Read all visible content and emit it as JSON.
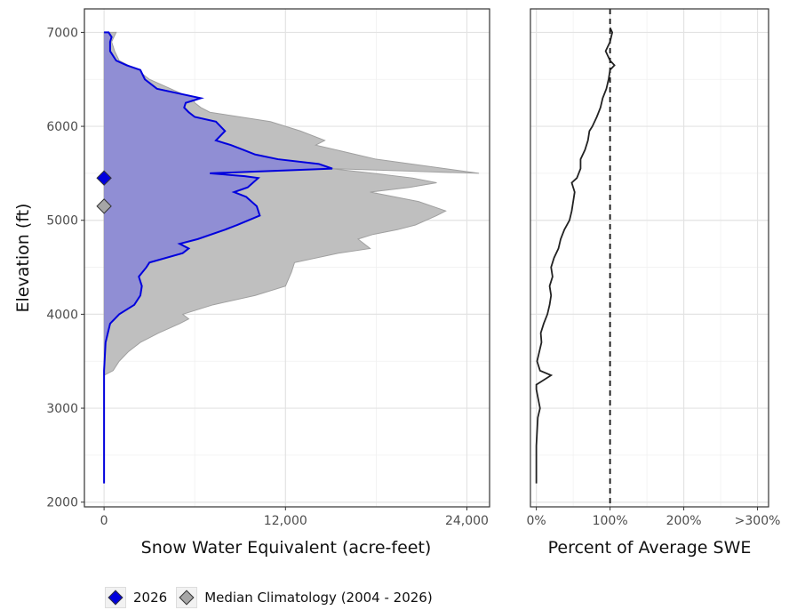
{
  "chart_data": [
    {
      "type": "area",
      "xlabel": "Snow Water Equivalent (acre-feet)",
      "ylabel": "Elevation (ft)",
      "xlim": [
        -1300,
        25500
      ],
      "ylim": [
        1950,
        7250
      ],
      "x_ticks": [
        0,
        12000,
        24000
      ],
      "x_tick_labels": [
        "0",
        "12,000",
        "24,000"
      ],
      "y_ticks": [
        2000,
        3000,
        4000,
        5000,
        6000,
        7000
      ],
      "y_tick_labels": [
        "2000",
        "3000",
        "4000",
        "5000",
        "6000",
        "7000"
      ],
      "grid": true,
      "series": [
        {
          "name": "Median Climatology (2004 - 2026)",
          "color": "#bdbdbd",
          "points": [
            [
              0,
              3350
            ],
            [
              600,
              3400
            ],
            [
              1000,
              3500
            ],
            [
              1600,
              3600
            ],
            [
              2400,
              3700
            ],
            [
              3600,
              3800
            ],
            [
              5000,
              3900
            ],
            [
              5600,
              3950
            ],
            [
              5200,
              4000
            ],
            [
              7200,
              4100
            ],
            [
              10000,
              4200
            ],
            [
              12000,
              4300
            ],
            [
              12400,
              4450
            ],
            [
              12600,
              4550
            ],
            [
              15500,
              4650
            ],
            [
              17600,
              4700
            ],
            [
              16800,
              4800
            ],
            [
              17800,
              4850
            ],
            [
              19400,
              4900
            ],
            [
              20600,
              4950
            ],
            [
              22000,
              5050
            ],
            [
              22600,
              5100
            ],
            [
              20800,
              5200
            ],
            [
              17600,
              5300
            ],
            [
              20200,
              5350
            ],
            [
              22000,
              5400
            ],
            [
              20400,
              5450
            ],
            [
              17800,
              5500
            ],
            [
              15000,
              5550
            ],
            [
              24800,
              5500
            ],
            [
              18000,
              5650
            ],
            [
              14000,
              5800
            ],
            [
              14600,
              5850
            ],
            [
              13000,
              5950
            ],
            [
              11000,
              6050
            ],
            [
              9000,
              6100
            ],
            [
              7000,
              6150
            ],
            [
              6400,
              6200
            ],
            [
              6000,
              6250
            ],
            [
              5800,
              6300
            ],
            [
              4400,
              6400
            ],
            [
              3000,
              6500
            ],
            [
              2200,
              6600
            ],
            [
              1000,
              6700
            ],
            [
              700,
              6800
            ],
            [
              500,
              6900
            ],
            [
              800,
              7000
            ],
            [
              0,
              7000
            ]
          ]
        },
        {
          "name": "2026",
          "color": "#0000dd",
          "points": [
            [
              0,
              2200
            ],
            [
              0,
              2600
            ],
            [
              0,
              3000
            ],
            [
              0,
              3400
            ],
            [
              100,
              3700
            ],
            [
              400,
              3900
            ],
            [
              1000,
              4000
            ],
            [
              2000,
              4100
            ],
            [
              2400,
              4200
            ],
            [
              2500,
              4300
            ],
            [
              2300,
              4400
            ],
            [
              2800,
              4500
            ],
            [
              3000,
              4550
            ],
            [
              5200,
              4650
            ],
            [
              5600,
              4700
            ],
            [
              5000,
              4750
            ],
            [
              6200,
              4800
            ],
            [
              8000,
              4900
            ],
            [
              8800,
              4950
            ],
            [
              10300,
              5050
            ],
            [
              10100,
              5150
            ],
            [
              9400,
              5250
            ],
            [
              8600,
              5300
            ],
            [
              9500,
              5350
            ],
            [
              10200,
              5450
            ],
            [
              9300,
              5470
            ],
            [
              7000,
              5500
            ],
            [
              15100,
              5550
            ],
            [
              14200,
              5600
            ],
            [
              11500,
              5650
            ],
            [
              10000,
              5700
            ],
            [
              9200,
              5750
            ],
            [
              8400,
              5800
            ],
            [
              7400,
              5850
            ],
            [
              8000,
              5950
            ],
            [
              7400,
              6050
            ],
            [
              6000,
              6100
            ],
            [
              5600,
              6150
            ],
            [
              5300,
              6200
            ],
            [
              5400,
              6250
            ],
            [
              6400,
              6300
            ],
            [
              3500,
              6400
            ],
            [
              2700,
              6500
            ],
            [
              2400,
              6600
            ],
            [
              1500,
              6650
            ],
            [
              800,
              6700
            ],
            [
              400,
              6800
            ],
            [
              400,
              6900
            ],
            [
              500,
              6950
            ],
            [
              300,
              7000
            ],
            [
              0,
              7000
            ]
          ]
        }
      ],
      "markers": [
        {
          "series": "2026",
          "x": 0,
          "y": 5450,
          "color": "#0000dd"
        },
        {
          "series": "Median Climatology (2004 - 2026)",
          "x": 0,
          "y": 5150,
          "color": "#a6a6a6"
        }
      ]
    },
    {
      "type": "line",
      "xlabel": "Percent of Average SWE",
      "xlim": [
        -8,
        315
      ],
      "ylim": [
        1950,
        7250
      ],
      "x_ticks": [
        0,
        100,
        200,
        300
      ],
      "x_tick_labels": [
        "0%",
        "100%",
        "200%",
        ">300%"
      ],
      "reference_line": {
        "x": 100,
        "style": "dashed"
      },
      "grid": true,
      "series": [
        {
          "name": "",
          "color": "#222222",
          "points": [
            [
              0,
              2200
            ],
            [
              0,
              2600
            ],
            [
              2,
              2900
            ],
            [
              5,
              3000
            ],
            [
              0,
              3200
            ],
            [
              0,
              3250
            ],
            [
              20,
              3350
            ],
            [
              5,
              3400
            ],
            [
              1,
              3500
            ],
            [
              4,
              3600
            ],
            [
              7,
              3700
            ],
            [
              6,
              3800
            ],
            [
              10,
              3900
            ],
            [
              15,
              4000
            ],
            [
              18,
              4100
            ],
            [
              20,
              4200
            ],
            [
              18,
              4300
            ],
            [
              22,
              4400
            ],
            [
              20,
              4500
            ],
            [
              24,
              4600
            ],
            [
              30,
              4700
            ],
            [
              33,
              4800
            ],
            [
              38,
              4900
            ],
            [
              45,
              5000
            ],
            [
              48,
              5100
            ],
            [
              50,
              5200
            ],
            [
              52,
              5300
            ],
            [
              48,
              5400
            ],
            [
              55,
              5450
            ],
            [
              60,
              5550
            ],
            [
              60,
              5650
            ],
            [
              66,
              5750
            ],
            [
              70,
              5850
            ],
            [
              72,
              5950
            ],
            [
              76,
              6000
            ],
            [
              82,
              6100
            ],
            [
              87,
              6200
            ],
            [
              90,
              6300
            ],
            [
              95,
              6400
            ],
            [
              98,
              6500
            ],
            [
              100,
              6600
            ],
            [
              106,
              6650
            ],
            [
              100,
              6700
            ],
            [
              94,
              6800
            ],
            [
              100,
              6900
            ],
            [
              103,
              7000
            ],
            [
              100,
              7050
            ]
          ]
        }
      ]
    }
  ],
  "legend": {
    "items": [
      {
        "label": "2026",
        "color": "#0000dd"
      },
      {
        "label": "Median Climatology (2004 - 2026)",
        "color": "#a6a6a6"
      }
    ]
  }
}
